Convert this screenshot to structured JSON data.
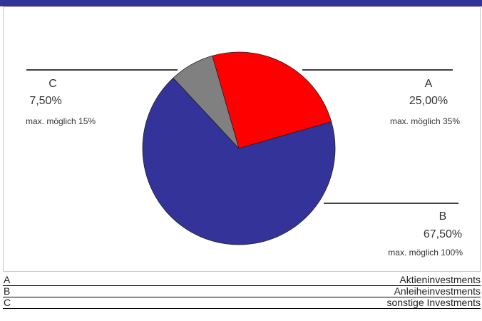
{
  "colors": {
    "header": "#333399",
    "slice_A": "#ff0000",
    "slice_B": "#333399",
    "slice_C": "#808080"
  },
  "chart_data": {
    "type": "pie",
    "title": "",
    "categories": [
      "A",
      "B",
      "C"
    ],
    "values": [
      25.0,
      67.5,
      7.5
    ],
    "value_labels": [
      "25,00%",
      "67,50%",
      "7,50%"
    ],
    "notes": [
      "max. möglich 35%",
      "max. möglich 100%",
      "max. möglich 15%"
    ],
    "colors": [
      "#ff0000",
      "#333399",
      "#808080"
    ],
    "legend": [
      {
        "key": "A",
        "label": "Aktieninvestments"
      },
      {
        "key": "B",
        "label": "Anleiheinvestments"
      },
      {
        "key": "C",
        "label": "sonstige Investments"
      }
    ]
  }
}
